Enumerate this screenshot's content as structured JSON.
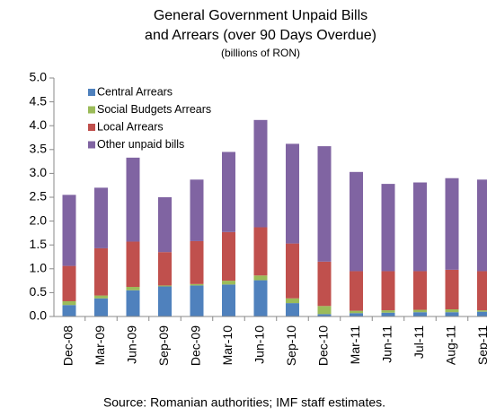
{
  "chart_data": {
    "type": "stacked_bar",
    "title": [
      "General Government  Unpaid Bills",
      "and Arrears (over 90 Days Overdue)"
    ],
    "subtitle": "(billions of RON)",
    "source": "Source: Romanian authorities; IMF staff estimates.",
    "categories": [
      "Dec-08",
      "Mar-09",
      "Jun-09",
      "Sep-09",
      "Dec-09",
      "Mar-10",
      "Jun-10",
      "Sep-10",
      "Dec-10",
      "Mar-11",
      "Jun-11",
      "Jul-11",
      "Aug-11",
      "Sep-11"
    ],
    "series": [
      {
        "name": "Central Arrears",
        "color": "#4f81bd",
        "values": [
          0.24,
          0.38,
          0.55,
          0.63,
          0.65,
          0.67,
          0.76,
          0.28,
          0.05,
          0.07,
          0.08,
          0.09,
          0.09,
          0.1
        ]
      },
      {
        "name": "Social Budgets Arrears",
        "color": "#9bbb59",
        "values": [
          0.08,
          0.06,
          0.07,
          0.02,
          0.03,
          0.08,
          0.1,
          0.1,
          0.17,
          0.05,
          0.05,
          0.05,
          0.06,
          0.03
        ]
      },
      {
        "name": "Local Arrears",
        "color": "#c0504d",
        "values": [
          0.74,
          0.99,
          0.95,
          0.7,
          0.9,
          1.02,
          1.01,
          1.15,
          0.93,
          0.83,
          0.82,
          0.81,
          0.83,
          0.82
        ]
      },
      {
        "name": "Other unpaid bills",
        "color": "#8064a2",
        "values": [
          1.49,
          1.27,
          1.76,
          1.15,
          1.29,
          1.68,
          2.25,
          2.09,
          2.42,
          2.08,
          1.83,
          1.86,
          1.92,
          1.92
        ]
      }
    ],
    "ylim": [
      0,
      5
    ],
    "yticks": [
      {
        "value": 0,
        "label": "0.0"
      },
      0.5,
      {
        "value": 1,
        "label": "1.0"
      },
      1.5,
      {
        "value": 2,
        "label": "2.0"
      },
      2.5,
      {
        "value": 3,
        "label": "3.0"
      },
      3.5,
      {
        "value": 4,
        "label": "4.0"
      },
      4.5,
      {
        "value": 5,
        "label": "5.0"
      }
    ],
    "legend": "top-left",
    "grid": false
  }
}
